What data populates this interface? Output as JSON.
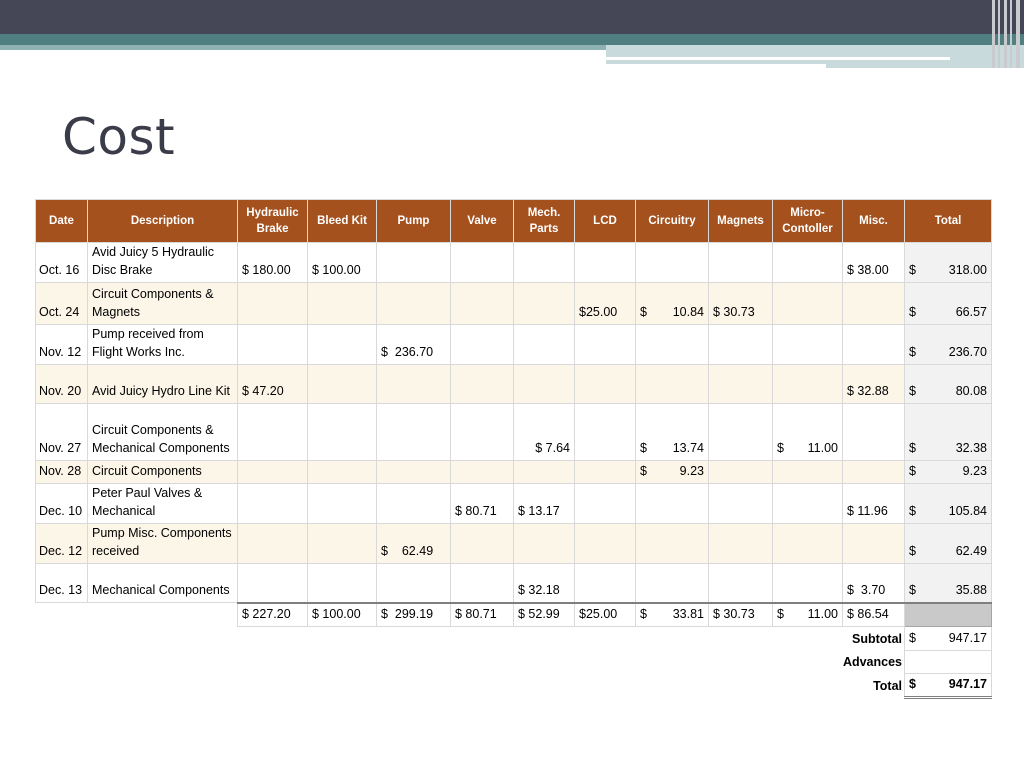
{
  "slide": {
    "title": "Cost"
  },
  "table": {
    "headers": [
      "Date",
      "Description",
      "Hydraulic Brake",
      "Bleed Kit",
      "Pump",
      "Valve",
      "Mech. Parts",
      "LCD",
      "Circuitry",
      "Magnets",
      "Micro-Contoller",
      "Misc.",
      "Total"
    ],
    "rows": [
      {
        "date": "Oct. 16",
        "description": "Avid Juicy 5 Hydraulic Disc Brake",
        "hydraulic_brake": "$ 180.00",
        "bleed_kit": "$ 100.00",
        "pump": "",
        "valve": "",
        "mech_parts": "",
        "lcd": "",
        "circuitry": "",
        "magnets": "",
        "micro_controller": "",
        "misc": "$ 38.00",
        "total": "318.00"
      },
      {
        "date": "Oct. 24",
        "description": "Circuit Components & Magnets",
        "hydraulic_brake": "",
        "bleed_kit": "",
        "pump": "",
        "valve": "",
        "mech_parts": "",
        "lcd": "$25.00",
        "circuitry": "10.84",
        "magnets": "$ 30.73",
        "micro_controller": "",
        "misc": "",
        "total": "66.57"
      },
      {
        "date": "Nov. 12",
        "description": "Pump received from Flight Works Inc.",
        "hydraulic_brake": "",
        "bleed_kit": "",
        "pump": "236.70",
        "valve": "",
        "mech_parts": "",
        "lcd": "",
        "circuitry": "",
        "magnets": "",
        "micro_controller": "",
        "misc": "",
        "total": "236.70"
      },
      {
        "date": "Nov. 20",
        "description": "Avid Juicy Hydro Line Kit",
        "hydraulic_brake": "$ 47.20",
        "bleed_kit": "",
        "pump": "",
        "valve": "",
        "mech_parts": "",
        "lcd": "",
        "circuitry": "",
        "magnets": "",
        "micro_controller": "",
        "misc": "$ 32.88",
        "total": "80.08"
      },
      {
        "date": "Nov. 27",
        "description": "Circuit Components & Mechanical Components",
        "hydraulic_brake": "",
        "bleed_kit": "",
        "pump": "",
        "valve": "",
        "mech_parts": "$ 7.64",
        "lcd": "",
        "circuitry": "13.74",
        "magnets": "",
        "micro_controller": "11.00",
        "misc": "",
        "total": "32.38"
      },
      {
        "date": "Nov. 28",
        "description": "Circuit Components",
        "hydraulic_brake": "",
        "bleed_kit": "",
        "pump": "",
        "valve": "",
        "mech_parts": "",
        "lcd": "",
        "circuitry": "9.23",
        "magnets": "",
        "micro_controller": "",
        "misc": "",
        "total": "9.23"
      },
      {
        "date": "Dec. 10",
        "description": "Peter Paul Valves & Mechanical",
        "hydraulic_brake": "",
        "bleed_kit": "",
        "pump": "",
        "valve": "$ 80.71",
        "mech_parts": "$ 13.17",
        "lcd": "",
        "circuitry": "",
        "magnets": "",
        "micro_controller": "",
        "misc": "$ 11.96",
        "total": "105.84"
      },
      {
        "date": "Dec. 12",
        "description": "Pump Misc. Components received",
        "hydraulic_brake": "",
        "bleed_kit": "",
        "pump": "62.49",
        "valve": "",
        "mech_parts": "",
        "lcd": "",
        "circuitry": "",
        "magnets": "",
        "micro_controller": "",
        "misc": "",
        "total": "62.49"
      },
      {
        "date": "Dec. 13",
        "description": "Mechanical Components",
        "hydraulic_brake": "",
        "bleed_kit": "",
        "pump": "",
        "valve": "",
        "mech_parts": "$ 32.18",
        "lcd": "",
        "circuitry": "",
        "magnets": "",
        "micro_controller": "",
        "misc": "$  3.70",
        "total": "35.88"
      }
    ],
    "column_totals": {
      "hydraulic_brake": "$ 227.20",
      "bleed_kit": "$ 100.00",
      "pump": "299.19",
      "valve": "$ 80.71",
      "mech_parts": "$ 52.99",
      "lcd": "$25.00",
      "circuitry": "33.81",
      "magnets": "$ 30.73",
      "micro_controller": "11.00",
      "misc": "$ 86.54"
    },
    "summary": {
      "subtotal_label": "Subtotal",
      "subtotal_value": "947.17",
      "advances_label": "Advances",
      "advances_value": "",
      "total_label": "Total",
      "total_value": "947.17"
    },
    "currency_symbol": "$"
  },
  "colors": {
    "header_bg": "#a4511e",
    "row_shade": "#fcf6e9",
    "topbar": "#454656",
    "teal": "#4f7f81"
  }
}
